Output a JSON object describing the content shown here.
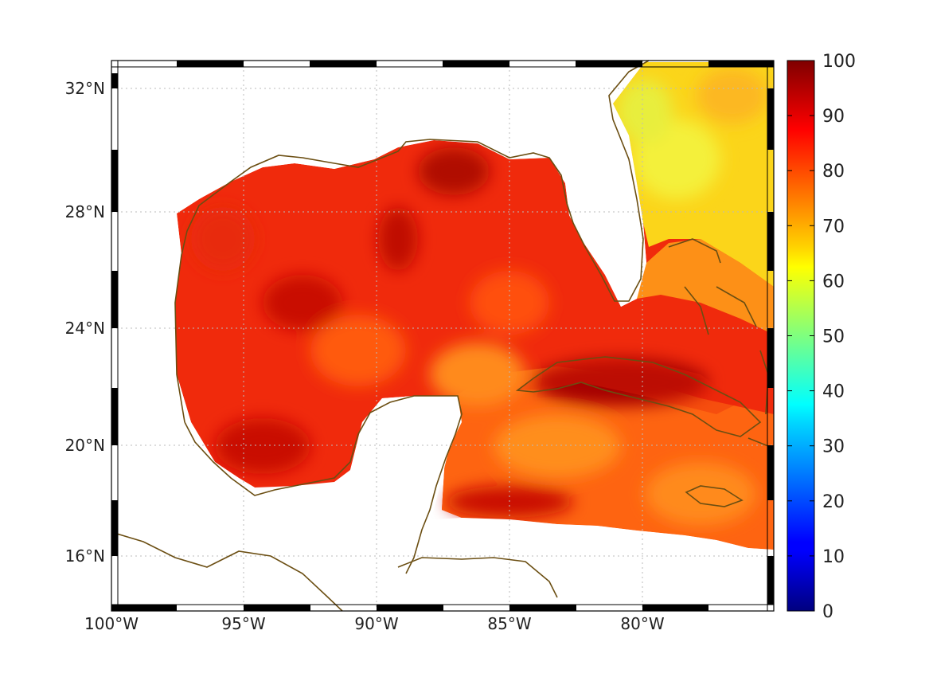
{
  "map": {
    "lon_range": [
      -100,
      -75
    ],
    "lat_range": [
      14.3,
      33
    ],
    "lon_ticks": [
      {
        "value": -100,
        "label": "100°W"
      },
      {
        "value": -95,
        "label": "95°W"
      },
      {
        "value": -90,
        "label": "90°W"
      },
      {
        "value": -85,
        "label": "85°W"
      },
      {
        "value": -80,
        "label": "80°W"
      }
    ],
    "lat_ticks": [
      {
        "value": 16,
        "label": "16°N"
      },
      {
        "value": 20,
        "label": "20°N"
      },
      {
        "value": 24,
        "label": "24°N"
      },
      {
        "value": 28,
        "label": "28°N"
      },
      {
        "value": 32,
        "label": "32°N"
      }
    ],
    "grid": "dotted",
    "coastline_color": "#6b4e12",
    "field_range": [
      60,
      98
    ],
    "regions": {
      "gulf_of_mexico": "red (~85-95)",
      "atlantic_east_of_florida": "yellow (~60-72)",
      "caribbean": "orange-red (~75-90)"
    }
  },
  "colorbar": {
    "min": 0,
    "max": 100,
    "ticks": [
      "0",
      "10",
      "20",
      "30",
      "40",
      "50",
      "60",
      "70",
      "80",
      "90",
      "100"
    ],
    "colormap": "jet"
  }
}
